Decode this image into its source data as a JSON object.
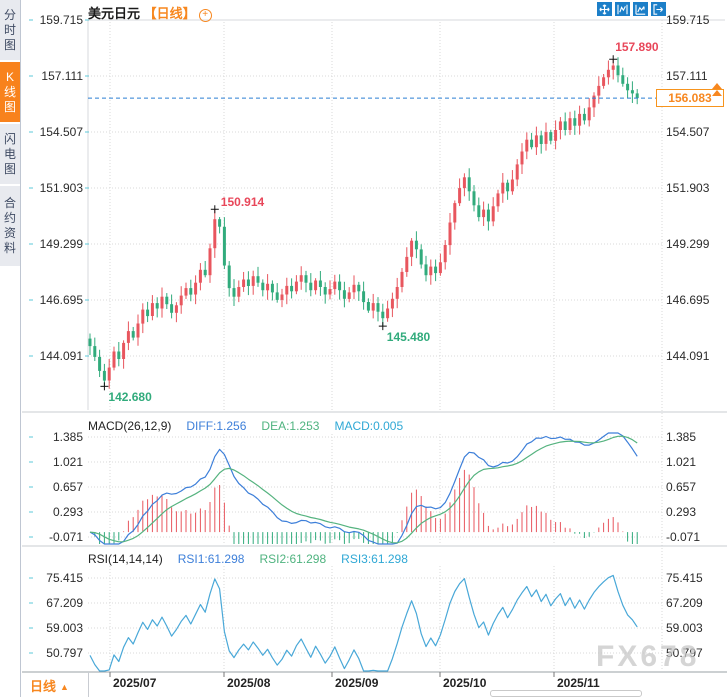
{
  "header": {
    "symbol": "美元日元",
    "period": "【日线】",
    "add_icon_glyph": "+"
  },
  "sidebar": {
    "tabs": [
      {
        "label": "分时图",
        "active": false
      },
      {
        "label": "K线图",
        "active": true
      },
      {
        "label": "闪电图",
        "active": false
      },
      {
        "label": "合约资料",
        "active": false
      }
    ]
  },
  "toolbar": {
    "icons": [
      "pan-icon",
      "zoom-range-icon",
      "indicators-icon",
      "exit-icon"
    ]
  },
  "price_scale": {
    "labels": [
      "159.715",
      "157.111",
      "154.507",
      "151.903",
      "149.299",
      "146.695",
      "144.091"
    ]
  },
  "current_price": "156.083",
  "annotations": [
    {
      "text": "157.890",
      "index": 109,
      "anchor": "high",
      "placement": "above",
      "color": "up"
    },
    {
      "text": "150.914",
      "index": 26,
      "anchor": "high",
      "placement": "right",
      "color": "up"
    },
    {
      "text": "145.480",
      "index": 61,
      "anchor": "low",
      "placement": "below",
      "color": "down"
    },
    {
      "text": "142.680",
      "index": 3,
      "anchor": "low",
      "placement": "below",
      "color": "down"
    }
  ],
  "macd": {
    "label": "MACD(26,12,9)",
    "legend": [
      {
        "text": "DIFF:1.256"
      },
      {
        "text": "DEA:1.253"
      },
      {
        "text": "MACD:0.005"
      }
    ],
    "axis": [
      "1.385",
      "1.021",
      "0.657",
      "0.293",
      "-0.071"
    ]
  },
  "rsi": {
    "label": "RSI(14,14,14)",
    "legend": [
      {
        "text": "RSI1:61.298"
      },
      {
        "text": "RSI2:61.298"
      },
      {
        "text": "RSI3:61.298"
      }
    ],
    "axis": [
      "75.415",
      "67.209",
      "59.003",
      "50.797"
    ]
  },
  "bottom": {
    "period_label": "日线",
    "period_arrow": "▲",
    "dates": [
      "2025/07",
      "2025/08",
      "2025/09",
      "2025/10",
      "2025/11"
    ]
  },
  "watermark": "FX678",
  "colors": {
    "up": "#e8565e",
    "down": "#31ab7c",
    "diff_line": "#3d7fd9",
    "dea_line": "#55b37f",
    "rsi_line": "#49a8d8",
    "accent_orange": "#f7871f",
    "current_line": "#2b7fd4",
    "grid": "#d9d9d9",
    "tick_teal": "#5cc8d8",
    "annotation_up": "#e8475a",
    "annotation_down": "#31ab7c"
  },
  "chart_data": [
    {
      "type": "candlestick",
      "title": "美元日元 日线 (USD/JPY daily)",
      "x_tick_labels": [
        "2025/07",
        "2025/08",
        "2025/09",
        "2025/10",
        "2025/11"
      ],
      "y_tick_labels": [
        159.715,
        157.111,
        154.507,
        151.903,
        149.299,
        146.695,
        144.091
      ],
      "ylim": [
        142.4,
        160.4
      ],
      "first_open": 144.9,
      "closes": [
        144.55,
        144.05,
        143.4,
        142.95,
        143.55,
        144.3,
        143.95,
        144.7,
        145.25,
        144.95,
        145.6,
        146.25,
        145.95,
        146.55,
        146.3,
        146.85,
        146.5,
        146.1,
        146.45,
        146.9,
        147.25,
        146.95,
        147.5,
        148.1,
        147.85,
        149.1,
        150.45,
        150.1,
        148.3,
        147.25,
        146.85,
        147.3,
        147.65,
        147.35,
        147.8,
        147.5,
        147.15,
        147.45,
        147.05,
        146.7,
        146.95,
        147.35,
        147.1,
        147.55,
        147.85,
        147.5,
        147.15,
        147.6,
        147.3,
        146.95,
        147.2,
        147.55,
        147.15,
        146.75,
        147.05,
        147.4,
        147.1,
        146.6,
        146.2,
        146.55,
        146.15,
        145.85,
        146.3,
        146.75,
        147.3,
        148.0,
        148.7,
        149.45,
        149.05,
        148.35,
        147.85,
        148.25,
        147.95,
        148.45,
        149.25,
        150.3,
        151.2,
        151.9,
        152.4,
        151.75,
        151.1,
        150.55,
        150.9,
        150.35,
        151.05,
        151.65,
        152.15,
        151.75,
        152.3,
        153.0,
        153.6,
        154.15,
        153.8,
        154.35,
        153.95,
        154.5,
        154.1,
        154.6,
        155.0,
        154.6,
        155.15,
        154.8,
        155.35,
        155.05,
        155.65,
        156.2,
        156.65,
        157.05,
        157.4,
        157.6,
        157.15,
        156.75,
        156.45,
        156.3,
        156.083
      ],
      "specials": {
        "3": {
          "low": 142.68
        },
        "26": {
          "high": 150.914
        },
        "61": {
          "low": 145.48
        },
        "109": {
          "high": 157.89
        }
      },
      "key_points": {
        "highest": 157.89,
        "july_high": 150.914,
        "june_low": 142.68,
        "september_low": 145.48,
        "last": 156.083
      }
    },
    {
      "type": "line",
      "name": "MACD",
      "title": "MACD(26,12,9)",
      "params": [
        26,
        12,
        9
      ],
      "last_values": {
        "DIFF": 1.256,
        "DEA": 1.253,
        "MACD": 0.005
      },
      "y_tick_labels": [
        1.385,
        1.021,
        0.657,
        0.293,
        -0.071
      ]
    },
    {
      "type": "line",
      "name": "RSI",
      "title": "RSI(14,14,14)",
      "params": [
        14,
        14,
        14
      ],
      "last_values": {
        "RSI1": 61.298,
        "RSI2": 61.298,
        "RSI3": 61.298
      },
      "y_tick_labels": [
        75.415,
        67.209,
        59.003,
        50.797
      ]
    }
  ]
}
